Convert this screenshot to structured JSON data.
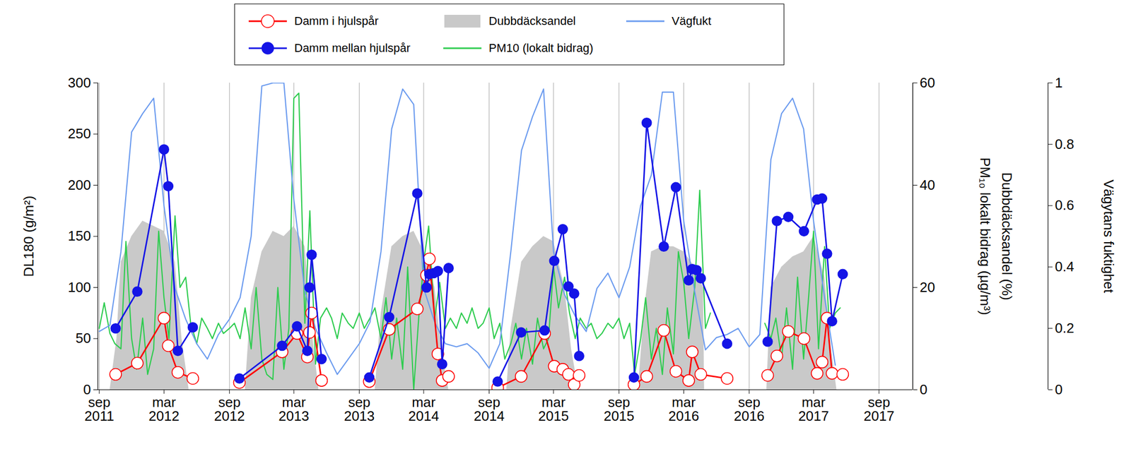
{
  "chart_data": {
    "type": "line",
    "legend": "top",
    "grid": true,
    "xlim": [
      "2011-08-28",
      "2017-12-05"
    ],
    "xticks": [
      {
        "value": "2011-09-01",
        "label": "sep\n2011"
      },
      {
        "value": "2012-03-01",
        "label": "mar\n2012"
      },
      {
        "value": "2012-09-01",
        "label": "sep\n2012"
      },
      {
        "value": "2013-03-01",
        "label": "mar\n2013"
      },
      {
        "value": "2013-09-01",
        "label": "sep\n2013"
      },
      {
        "value": "2014-03-01",
        "label": "mar\n2014"
      },
      {
        "value": "2014-09-01",
        "label": "sep\n2014"
      },
      {
        "value": "2015-03-01",
        "label": "mar\n2015"
      },
      {
        "value": "2015-09-01",
        "label": "sep\n2015"
      },
      {
        "value": "2016-03-01",
        "label": "mar\n2016"
      },
      {
        "value": "2016-09-01",
        "label": "sep\n2016"
      },
      {
        "value": "2017-03-01",
        "label": "mar\n2017"
      },
      {
        "value": "2017-09-01",
        "label": "sep\n2017"
      }
    ],
    "ylabel": "DL180 (g/m²)",
    "ylim": [
      0,
      300
    ],
    "yticks": [
      0,
      50,
      100,
      150,
      200,
      250,
      300
    ],
    "y2label": [
      "Dubbdäcksandel (%)",
      "PM₁₀ lokalt bidrag (µg/m³)"
    ],
    "y2lim": [
      0,
      60
    ],
    "y2ticks": [
      0,
      20,
      40,
      60
    ],
    "y3label": [
      "Vägytans fuktighet"
    ],
    "y3lim": [
      0,
      1
    ],
    "y3ticks": [
      0,
      0.2,
      0.4,
      0.6,
      0.8,
      1
    ],
    "series": [
      {
        "name": "Damm i hjulspår",
        "type": "line",
        "color": "#ff0000",
        "marker": "circle_open",
        "axis": "y",
        "x": [
          "2011-10-17",
          "2011-12-17",
          "2012-03-01",
          "2012-03-13",
          "2012-04-09",
          "2012-05-21",
          "2012-08-01",
          "2012-09-29",
          "2013-01-27",
          "2013-03-10",
          "2013-04-08",
          "2013-04-14",
          "2013-04-20",
          "2013-05-18",
          "2013-08-01",
          "2013-09-29",
          "2013-11-24",
          "2014-02-11",
          "2014-03-09",
          "2014-03-17",
          "2014-04-10",
          "2014-04-22",
          "2014-05-10",
          "2014-08-01",
          "2014-09-25",
          "2014-11-30",
          "2015-02-04",
          "2015-03-03",
          "2015-03-27",
          "2015-04-12",
          "2015-04-28",
          "2015-05-12",
          "2015-08-01",
          "2015-10-13",
          "2015-11-18",
          "2016-01-05",
          "2016-02-08",
          "2016-03-15",
          "2016-03-25",
          "2016-04-18",
          "2016-07-01",
          "2016-08-15",
          "2016-10-23",
          "2016-11-18",
          "2016-12-20",
          "2017-02-02",
          "2017-03-11",
          "2017-03-25",
          "2017-04-08",
          "2017-04-22",
          "2017-05-22"
        ],
        "values": [
          15,
          26,
          70,
          43,
          17,
          11,
          null,
          7,
          37,
          55,
          32,
          56,
          75,
          9,
          null,
          8,
          59,
          79,
          112,
          128,
          35,
          9,
          13,
          null,
          2,
          13,
          55,
          23,
          20,
          15,
          5,
          14,
          null,
          5,
          13,
          58,
          18,
          9,
          37,
          15,
          11,
          null,
          14,
          33,
          57,
          50,
          16,
          27,
          70,
          16,
          15
        ]
      },
      {
        "name": "Damm mellan hjulspår",
        "type": "line",
        "color": "#1414e6",
        "marker": "circle",
        "axis": "y",
        "x": [
          "2011-10-17",
          "2011-12-17",
          "2012-03-01",
          "2012-03-13",
          "2012-04-09",
          "2012-05-21",
          "2012-08-01",
          "2012-09-29",
          "2013-01-27",
          "2013-03-10",
          "2013-04-08",
          "2013-04-14",
          "2013-04-20",
          "2013-05-18",
          "2013-08-01",
          "2013-09-29",
          "2013-11-24",
          "2014-02-11",
          "2014-03-09",
          "2014-03-17",
          "2014-03-29",
          "2014-04-10",
          "2014-04-22",
          "2014-05-10",
          "2014-08-01",
          "2014-09-25",
          "2014-11-30",
          "2015-02-04",
          "2015-03-03",
          "2015-03-27",
          "2015-04-12",
          "2015-04-28",
          "2015-05-12",
          "2015-08-01",
          "2015-10-13",
          "2015-11-18",
          "2016-01-05",
          "2016-02-08",
          "2016-03-15",
          "2016-03-25",
          "2016-04-06",
          "2016-04-18",
          "2016-07-01",
          "2016-08-15",
          "2016-10-23",
          "2016-11-18",
          "2016-12-20",
          "2017-02-02",
          "2017-03-11",
          "2017-03-25",
          "2017-04-08",
          "2017-04-22",
          "2017-05-22"
        ],
        "values": [
          60,
          96,
          235,
          199,
          38,
          61,
          null,
          11,
          43,
          62,
          38,
          100,
          132,
          30,
          null,
          12,
          71,
          192,
          100,
          113,
          114,
          116,
          25,
          119,
          null,
          8,
          56,
          58,
          126,
          157,
          101,
          94,
          33,
          null,
          12,
          261,
          140,
          198,
          107,
          118,
          117,
          109,
          45,
          null,
          47,
          165,
          169,
          155,
          186,
          187,
          133,
          67,
          113
        ]
      },
      {
        "name": "Dubbdäcksandel",
        "type": "area",
        "color": "#c9c9c9",
        "axis": "y2",
        "x": [
          "2011-10-01",
          "2011-10-20",
          "2011-11-01",
          "2011-12-01",
          "2012-01-01",
          "2012-02-01",
          "2012-03-01",
          "2012-04-01",
          "2012-04-20",
          "2012-05-10",
          "2012-10-15",
          "2012-11-01",
          "2012-12-01",
          "2013-01-01",
          "2013-02-01",
          "2013-03-01",
          "2013-04-01",
          "2013-04-20",
          "2013-05-10",
          "2013-10-15",
          "2013-11-01",
          "2013-12-01",
          "2014-01-01",
          "2014-02-01",
          "2014-03-01",
          "2014-04-01",
          "2014-04-20",
          "2014-05-10",
          "2014-10-20",
          "2014-11-01",
          "2014-12-01",
          "2015-01-01",
          "2015-02-01",
          "2015-03-01",
          "2015-04-01",
          "2015-04-20",
          "2015-05-10",
          "2015-10-25",
          "2015-11-10",
          "2015-12-01",
          "2016-01-01",
          "2016-02-01",
          "2016-03-01",
          "2016-04-01",
          "2016-04-25",
          "2016-04-28",
          "2016-10-20",
          "2016-11-01",
          "2016-12-01",
          "2017-01-01",
          "2017-02-01",
          "2017-03-01",
          "2017-04-01",
          "2017-04-20",
          "2017-05-05"
        ],
        "values": [
          0,
          10,
          25,
          30,
          33,
          32,
          31,
          25,
          10,
          0,
          0,
          18,
          27,
          31,
          30,
          32,
          28,
          12,
          0,
          0,
          15,
          28,
          30,
          31,
          27,
          20,
          8,
          0,
          0,
          12,
          25,
          28,
          30,
          29,
          20,
          8,
          0,
          0,
          15,
          27,
          28,
          28,
          27,
          24,
          20,
          0,
          0,
          20,
          24,
          26,
          27,
          30,
          22,
          8,
          0
        ]
      },
      {
        "name": "PM10 (lokalt bidrag)",
        "type": "line",
        "color": "#2ecc4f",
        "axis": "y2",
        "x": [
          "2011-09-01",
          "2011-09-15",
          "2011-10-01",
          "2011-10-15",
          "2011-11-01",
          "2011-11-15",
          "2011-12-01",
          "2011-12-15",
          "2012-01-01",
          "2012-01-15",
          "2012-02-01",
          "2012-02-15",
          "2012-03-01",
          "2012-03-15",
          "2012-04-01",
          "2012-04-15",
          "2012-05-01",
          "2012-05-15",
          "2012-06-01",
          "2012-06-15",
          "2012-07-01",
          "2012-07-15",
          "2012-08-01",
          "2012-08-15",
          "2012-09-01",
          "2012-09-15",
          "2012-10-01",
          "2012-10-15",
          "2012-11-01",
          "2012-11-15",
          "2012-12-01",
          "2012-12-15",
          "2013-01-01",
          "2013-01-15",
          "2013-02-01",
          "2013-02-15",
          "2013-03-01",
          "2013-03-15",
          "2013-04-01",
          "2013-04-15",
          "2013-05-01",
          "2013-05-15",
          "2013-06-01",
          "2013-06-15",
          "2013-07-01",
          "2013-07-15",
          "2013-08-01",
          "2013-08-15",
          "2013-09-01",
          "2013-09-15",
          "2013-10-01",
          "2013-10-15",
          "2013-11-01",
          "2013-11-15",
          "2013-12-01",
          "2013-12-15",
          "2014-01-01",
          "2014-01-15",
          "2014-02-01",
          "2014-02-15",
          "2014-03-01",
          "2014-03-15",
          "2014-04-01",
          "2014-04-15",
          "2014-05-01",
          "2014-05-15",
          "2014-06-01",
          "2014-06-15",
          "2014-07-01",
          "2014-07-15",
          "2014-08-01",
          "2014-08-15",
          "2014-09-01",
          "2014-09-15",
          "2014-10-01",
          "2014-10-15",
          "2014-11-01",
          "2014-11-15",
          "2014-12-01",
          "2014-12-15",
          "2015-01-01",
          "2015-01-15",
          "2015-02-01",
          "2015-02-15",
          "2015-03-01",
          "2015-03-15",
          "2015-04-01",
          "2015-04-15",
          "2015-05-01",
          "2015-05-15",
          "2015-06-01",
          "2015-06-15",
          "2015-07-01",
          "2015-07-15",
          "2015-08-01",
          "2015-08-15",
          "2015-09-01",
          "2015-09-15",
          "2015-10-01",
          "2015-10-15",
          "2015-11-01",
          "2015-11-15",
          "2015-12-01",
          "2015-12-15",
          "2016-01-01",
          "2016-01-15",
          "2016-02-01",
          "2016-02-15",
          "2016-03-01",
          "2016-03-15",
          "2016-04-01",
          "2016-04-15",
          "2016-05-01",
          "2016-05-15",
          "2016-07-01",
          "2016-10-15",
          "2016-11-01",
          "2016-11-15",
          "2016-12-01",
          "2016-12-15",
          "2017-01-01",
          "2017-01-15",
          "2017-02-01",
          "2017-02-15",
          "2017-03-01",
          "2017-03-15",
          "2017-04-01",
          "2017-04-15",
          "2017-05-01",
          "2017-05-15"
        ],
        "values": [
          12,
          17,
          11,
          9,
          8,
          29,
          10,
          4,
          14,
          3,
          8,
          31,
          18,
          10,
          34,
          20,
          22,
          13,
          9,
          14,
          12,
          10,
          13,
          11,
          12,
          13,
          10,
          16,
          8,
          20,
          6,
          3,
          2,
          20,
          4,
          12,
          57,
          58,
          13,
          35,
          5,
          14,
          16,
          14,
          10,
          15,
          13,
          12,
          15,
          12,
          14,
          16,
          10,
          18,
          6,
          14,
          4,
          24,
          0,
          14,
          25,
          32,
          14,
          21,
          12,
          14,
          12,
          15,
          13,
          16,
          12,
          13,
          16,
          10,
          13,
          6,
          9,
          13,
          6,
          12,
          5,
          14,
          8,
          10,
          24,
          16,
          22,
          15,
          10,
          14,
          12,
          13,
          10,
          11,
          13,
          12,
          14,
          10,
          13,
          3,
          10,
          18,
          6,
          12,
          3,
          16,
          7,
          27,
          21,
          10,
          20,
          39,
          12,
          15,
          null,
          13,
          10,
          14,
          6,
          16,
          4,
          22,
          6,
          18,
          31,
          8,
          28,
          12,
          15,
          16
        ]
      },
      {
        "name": "Vägfukt",
        "type": "line",
        "color": "#6b9bef",
        "axis": "y3",
        "x": [
          "2011-09-01",
          "2011-10-01",
          "2011-11-01",
          "2011-12-01",
          "2012-01-01",
          "2012-02-01",
          "2012-03-01",
          "2012-04-01",
          "2012-05-01",
          "2012-06-01",
          "2012-07-01",
          "2012-08-01",
          "2012-09-01",
          "2012-10-01",
          "2012-11-01",
          "2012-12-01",
          "2013-01-01",
          "2013-02-01",
          "2013-03-01",
          "2013-04-01",
          "2013-05-01",
          "2013-06-01",
          "2013-07-01",
          "2013-08-01",
          "2013-09-01",
          "2013-10-01",
          "2013-11-01",
          "2013-12-01",
          "2014-01-01",
          "2014-02-01",
          "2014-03-01",
          "2014-04-01",
          "2014-05-01",
          "2014-06-01",
          "2014-07-01",
          "2014-08-01",
          "2014-09-01",
          "2014-10-01",
          "2014-11-01",
          "2014-12-01",
          "2015-01-01",
          "2015-02-01",
          "2015-03-01",
          "2015-04-01",
          "2015-05-01",
          "2015-06-01",
          "2015-07-01",
          "2015-08-01",
          "2015-09-01",
          "2015-10-01",
          "2015-11-01",
          "2015-12-01",
          "2016-01-01",
          "2016-02-01",
          "2016-03-01",
          "2016-04-01",
          "2016-05-01",
          "2016-06-01",
          "2016-07-01",
          "2016-08-01",
          "2016-09-01",
          "2016-10-01",
          "2016-11-01",
          "2016-12-01",
          "2017-01-01",
          "2017-02-01",
          "2017-03-01",
          "2017-04-01",
          "2017-05-01"
        ],
        "values": [
          0.19,
          0.21,
          0.45,
          0.84,
          0.9,
          0.95,
          0.6,
          0.33,
          0.23,
          0.15,
          0.1,
          0.18,
          0.23,
          0.3,
          0.5,
          0.99,
          1,
          1,
          0.62,
          0.32,
          0.2,
          0.12,
          0.05,
          0.1,
          0.15,
          0.22,
          0.45,
          0.85,
          0.98,
          0.93,
          0.33,
          0.22,
          0.15,
          0.14,
          0.15,
          0.12,
          0.07,
          0.15,
          0.45,
          0.78,
          0.89,
          0.98,
          0.45,
          0.31,
          0.24,
          0.19,
          0.33,
          0.38,
          0.3,
          0.4,
          0.6,
          0.7,
          0.97,
          0.97,
          0.55,
          0.32,
          0.13,
          0.17,
          0.18,
          0.2,
          0.14,
          0.18,
          0.75,
          0.9,
          0.95,
          0.85,
          0.55,
          0.3,
          0.08
        ]
      }
    ]
  }
}
